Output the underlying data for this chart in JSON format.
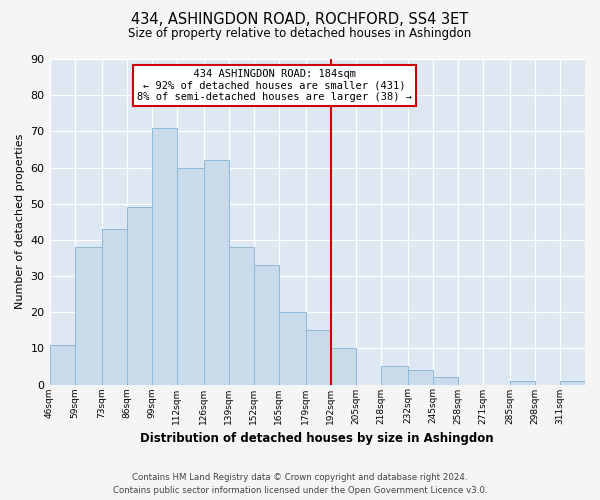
{
  "title": "434, ASHINGDON ROAD, ROCHFORD, SS4 3ET",
  "subtitle": "Size of property relative to detached houses in Ashingdon",
  "xlabel": "Distribution of detached houses by size in Ashingdon",
  "ylabel": "Number of detached properties",
  "bar_labels": [
    "46sqm",
    "59sqm",
    "73sqm",
    "86sqm",
    "99sqm",
    "112sqm",
    "126sqm",
    "139sqm",
    "152sqm",
    "165sqm",
    "179sqm",
    "192sqm",
    "205sqm",
    "218sqm",
    "232sqm",
    "245sqm",
    "258sqm",
    "271sqm",
    "285sqm",
    "298sqm",
    "311sqm"
  ],
  "bar_values": [
    11,
    38,
    43,
    49,
    71,
    60,
    62,
    38,
    33,
    20,
    15,
    10,
    0,
    5,
    4,
    2,
    0,
    0,
    1,
    0,
    1
  ],
  "bar_color": "#c9daea",
  "bar_edge_color": "#8fb8d8",
  "annotation_title": "434 ASHINGDON ROAD: 184sqm",
  "annotation_line1": "← 92% of detached houses are smaller (431)",
  "annotation_line2": "8% of semi-detached houses are larger (38) →",
  "annotation_box_color": "#ffffff",
  "annotation_box_edge": "#cc0000",
  "vline_color": "#cc0000",
  "vline_x_index": 11,
  "ylim": [
    0,
    90
  ],
  "yticks": [
    0,
    10,
    20,
    30,
    40,
    50,
    60,
    70,
    80,
    90
  ],
  "footer_line1": "Contains HM Land Registry data © Crown copyright and database right 2024.",
  "footer_line2": "Contains public sector information licensed under the Open Government Licence v3.0.",
  "bg_color": "#dde8f3",
  "bin_edges": [
    46,
    59,
    73,
    86,
    99,
    112,
    126,
    139,
    152,
    165,
    179,
    192,
    205,
    218,
    232,
    245,
    258,
    271,
    285,
    298,
    311,
    324
  ]
}
